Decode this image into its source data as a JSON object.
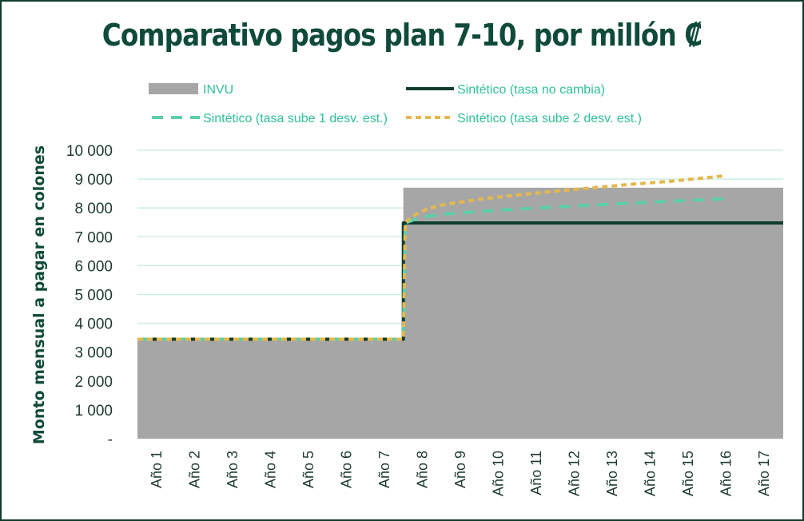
{
  "chart_data": {
    "type": "area",
    "title": "Comparativo pagos plan 7-10, por millón ₡",
    "ylabel": "Monto mensual a pagar en colones",
    "xlabel": "",
    "ylim": [
      0,
      10000
    ],
    "y_ticks": [
      {
        "value": 0,
        "label": "-"
      },
      {
        "value": 1000,
        "label": "1 000"
      },
      {
        "value": 2000,
        "label": "2 000"
      },
      {
        "value": 3000,
        "label": "3 000"
      },
      {
        "value": 4000,
        "label": "4 000"
      },
      {
        "value": 5000,
        "label": "5 000"
      },
      {
        "value": 6000,
        "label": "6 000"
      },
      {
        "value": 7000,
        "label": "7 000"
      },
      {
        "value": 8000,
        "label": "8 000"
      },
      {
        "value": 9000,
        "label": "9 000"
      },
      {
        "value": 10000,
        "label": "10 000"
      }
    ],
    "categories": [
      "Año 1",
      "Año 2",
      "Año 3",
      "Año 4",
      "Año 5",
      "Año 6",
      "Año 7",
      "Año 8",
      "Año 9",
      "Año 10",
      "Año 11",
      "Año 12",
      "Año 13",
      "Año 14",
      "Año 15",
      "Año 16",
      "Año 17"
    ],
    "grid": true,
    "legend_position": "top",
    "series": [
      {
        "name": "INVU",
        "style": "area",
        "color": "#a6a6a6",
        "x": [
          0,
          7,
          7,
          17
        ],
        "values": [
          3400,
          3400,
          8700,
          8700
        ]
      },
      {
        "name": "Sintético (tasa no cambia)",
        "style": "solid",
        "color": "#0f3d2e",
        "x": [
          0,
          7,
          7,
          17
        ],
        "values": [
          3450,
          3450,
          7480,
          7480
        ]
      },
      {
        "name": "Sintético (tasa sube 1 desv. est.)",
        "style": "dashed",
        "color": "#5ccfaa",
        "x": [
          0,
          7,
          7.05,
          7.3,
          7.6,
          8,
          9,
          10,
          11,
          12,
          13,
          14,
          15,
          15.5
        ],
        "values": [
          3450,
          3450,
          7480,
          7600,
          7700,
          7780,
          7880,
          7960,
          8030,
          8100,
          8170,
          8230,
          8290,
          8320
        ]
      },
      {
        "name": "Sintético (tasa sube 2 desv. est.)",
        "style": "dotted",
        "color": "#e4b84e",
        "x": [
          0,
          7,
          7.05,
          7.3,
          7.6,
          8,
          9,
          10,
          11,
          12,
          13,
          14,
          15,
          15.5
        ],
        "values": [
          3450,
          3450,
          7500,
          7750,
          7950,
          8100,
          8300,
          8450,
          8580,
          8700,
          8820,
          8920,
          9050,
          9120
        ]
      }
    ]
  }
}
